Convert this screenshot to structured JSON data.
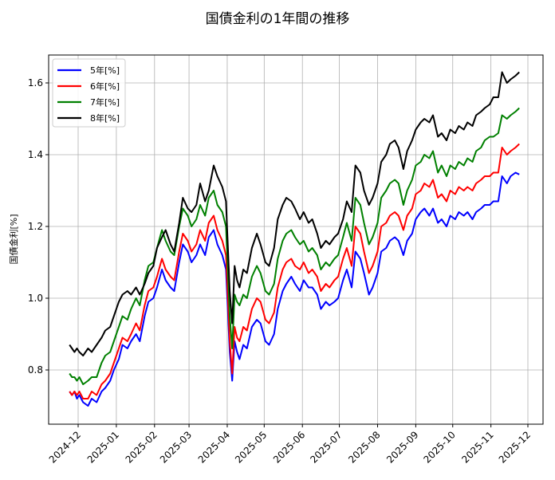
{
  "chart_data": {
    "type": "line",
    "title": "国債金利の1年間の推移",
    "xlabel": "",
    "ylabel": "国債金利[%]",
    "ylim": [
      0.65,
      1.675
    ],
    "yticks": [
      0.8,
      1.0,
      1.2,
      1.4,
      1.6
    ],
    "ytick_labels": [
      "0.8",
      "1.0",
      "1.2",
      "1.4",
      "1.6"
    ],
    "xticks": [
      "2024-12",
      "2025-01",
      "2025-02",
      "2025-03",
      "2025-04",
      "2025-05",
      "2025-06",
      "2025-07",
      "2025-08",
      "2025-09",
      "2025-10",
      "2025-11",
      "2025-12"
    ],
    "xrange_days": [
      -17,
      378
    ],
    "grid": true,
    "legend_position": "upper left",
    "x_days_from_2024_12_01": [
      -7,
      -5,
      -3,
      -1,
      1,
      4,
      8,
      11,
      15,
      19,
      22,
      26,
      29,
      33,
      36,
      40,
      43,
      47,
      50,
      54,
      57,
      61,
      64,
      68,
      71,
      75,
      78,
      82,
      85,
      89,
      92,
      96,
      99,
      103,
      106,
      110,
      113,
      117,
      120,
      123,
      125,
      127,
      129,
      131,
      134,
      137,
      141,
      145,
      148,
      152,
      155,
      159,
      162,
      166,
      169,
      173,
      176,
      180,
      183,
      187,
      190,
      194,
      197,
      201,
      204,
      208,
      211,
      215,
      218,
      222,
      225,
      229,
      232,
      236,
      239,
      243,
      246,
      250,
      253,
      257,
      260,
      264,
      267,
      271,
      274,
      278,
      281,
      285,
      288,
      292,
      295,
      299,
      302,
      306,
      309,
      313,
      316,
      320,
      323,
      327,
      330,
      334,
      337,
      341,
      344,
      348,
      351,
      355,
      358
    ],
    "series": [
      {
        "name": "5年[%]",
        "color": "#0000ff",
        "values": [
          0.74,
          0.73,
          0.74,
          0.72,
          0.73,
          0.71,
          0.7,
          0.72,
          0.71,
          0.74,
          0.75,
          0.77,
          0.8,
          0.83,
          0.87,
          0.86,
          0.88,
          0.9,
          0.88,
          0.95,
          0.99,
          1.0,
          1.03,
          1.08,
          1.05,
          1.03,
          1.02,
          1.1,
          1.15,
          1.13,
          1.1,
          1.12,
          1.15,
          1.12,
          1.17,
          1.19,
          1.15,
          1.12,
          1.08,
          0.85,
          0.77,
          0.88,
          0.85,
          0.83,
          0.87,
          0.86,
          0.92,
          0.94,
          0.93,
          0.88,
          0.87,
          0.9,
          0.97,
          1.02,
          1.04,
          1.06,
          1.04,
          1.02,
          1.05,
          1.03,
          1.03,
          1.01,
          0.97,
          0.99,
          0.98,
          0.99,
          1.0,
          1.05,
          1.08,
          1.03,
          1.13,
          1.11,
          1.07,
          1.01,
          1.03,
          1.07,
          1.13,
          1.14,
          1.16,
          1.17,
          1.16,
          1.12,
          1.16,
          1.18,
          1.22,
          1.24,
          1.25,
          1.23,
          1.25,
          1.21,
          1.22,
          1.2,
          1.23,
          1.22,
          1.24,
          1.23,
          1.24,
          1.22,
          1.24,
          1.25,
          1.26,
          1.26,
          1.27,
          1.27,
          1.34,
          1.32,
          1.34,
          1.35,
          1.345
        ]
      },
      {
        "name": "6年[%]",
        "color": "#ff0000",
        "values": [
          0.74,
          0.73,
          0.74,
          0.73,
          0.74,
          0.72,
          0.72,
          0.74,
          0.73,
          0.76,
          0.77,
          0.79,
          0.82,
          0.86,
          0.89,
          0.88,
          0.9,
          0.93,
          0.91,
          0.98,
          1.02,
          1.03,
          1.06,
          1.11,
          1.08,
          1.06,
          1.05,
          1.13,
          1.18,
          1.16,
          1.13,
          1.15,
          1.19,
          1.16,
          1.21,
          1.23,
          1.19,
          1.16,
          1.12,
          0.88,
          0.79,
          0.92,
          0.89,
          0.88,
          0.92,
          0.91,
          0.97,
          1.0,
          0.99,
          0.94,
          0.93,
          0.96,
          1.03,
          1.08,
          1.1,
          1.11,
          1.09,
          1.08,
          1.1,
          1.07,
          1.08,
          1.06,
          1.02,
          1.04,
          1.03,
          1.05,
          1.06,
          1.11,
          1.14,
          1.09,
          1.2,
          1.18,
          1.13,
          1.07,
          1.09,
          1.13,
          1.2,
          1.21,
          1.23,
          1.24,
          1.23,
          1.19,
          1.23,
          1.25,
          1.29,
          1.3,
          1.32,
          1.31,
          1.33,
          1.28,
          1.29,
          1.27,
          1.3,
          1.29,
          1.31,
          1.3,
          1.31,
          1.3,
          1.32,
          1.33,
          1.34,
          1.34,
          1.35,
          1.35,
          1.42,
          1.4,
          1.41,
          1.42,
          1.43
        ]
      },
      {
        "name": "7年[%]",
        "color": "#008000",
        "values": [
          0.79,
          0.78,
          0.78,
          0.77,
          0.78,
          0.76,
          0.77,
          0.78,
          0.78,
          0.82,
          0.84,
          0.85,
          0.88,
          0.92,
          0.95,
          0.94,
          0.97,
          1.0,
          0.98,
          1.05,
          1.09,
          1.1,
          1.14,
          1.19,
          1.16,
          1.13,
          1.12,
          1.2,
          1.25,
          1.23,
          1.2,
          1.22,
          1.26,
          1.23,
          1.28,
          1.3,
          1.26,
          1.24,
          1.2,
          0.95,
          0.86,
          1.01,
          0.99,
          0.98,
          1.01,
          1.0,
          1.06,
          1.09,
          1.07,
          1.02,
          1.01,
          1.04,
          1.11,
          1.16,
          1.18,
          1.19,
          1.17,
          1.15,
          1.16,
          1.13,
          1.14,
          1.12,
          1.08,
          1.1,
          1.09,
          1.11,
          1.12,
          1.17,
          1.21,
          1.16,
          1.28,
          1.26,
          1.21,
          1.15,
          1.17,
          1.21,
          1.28,
          1.3,
          1.32,
          1.33,
          1.32,
          1.26,
          1.3,
          1.33,
          1.37,
          1.38,
          1.4,
          1.39,
          1.41,
          1.35,
          1.37,
          1.34,
          1.37,
          1.36,
          1.38,
          1.37,
          1.39,
          1.38,
          1.41,
          1.42,
          1.44,
          1.45,
          1.45,
          1.46,
          1.51,
          1.5,
          1.51,
          1.52,
          1.53
        ]
      },
      {
        "name": "8年[%]",
        "color": "#000000",
        "values": [
          0.87,
          0.86,
          0.85,
          0.86,
          0.85,
          0.84,
          0.86,
          0.85,
          0.87,
          0.89,
          0.91,
          0.92,
          0.95,
          0.99,
          1.01,
          1.02,
          1.01,
          1.03,
          1.01,
          1.04,
          1.07,
          1.09,
          1.14,
          1.17,
          1.19,
          1.15,
          1.13,
          1.21,
          1.28,
          1.25,
          1.24,
          1.26,
          1.32,
          1.27,
          1.3,
          1.37,
          1.34,
          1.31,
          1.27,
          1.02,
          0.93,
          1.09,
          1.05,
          1.03,
          1.08,
          1.07,
          1.14,
          1.18,
          1.15,
          1.1,
          1.09,
          1.14,
          1.22,
          1.26,
          1.28,
          1.27,
          1.25,
          1.22,
          1.24,
          1.21,
          1.22,
          1.18,
          1.14,
          1.16,
          1.15,
          1.17,
          1.18,
          1.22,
          1.27,
          1.24,
          1.37,
          1.35,
          1.3,
          1.26,
          1.28,
          1.32,
          1.38,
          1.4,
          1.43,
          1.44,
          1.42,
          1.36,
          1.41,
          1.44,
          1.47,
          1.49,
          1.5,
          1.49,
          1.51,
          1.45,
          1.46,
          1.44,
          1.47,
          1.46,
          1.48,
          1.47,
          1.49,
          1.48,
          1.51,
          1.52,
          1.53,
          1.54,
          1.56,
          1.56,
          1.63,
          1.6,
          1.61,
          1.62,
          1.63
        ]
      }
    ]
  },
  "title": "国債金利の1年間の推移",
  "ylabel": "国債金利[%]",
  "legend": [
    "5年[%]",
    "6年[%]",
    "7年[%]",
    "8年[%]"
  ]
}
